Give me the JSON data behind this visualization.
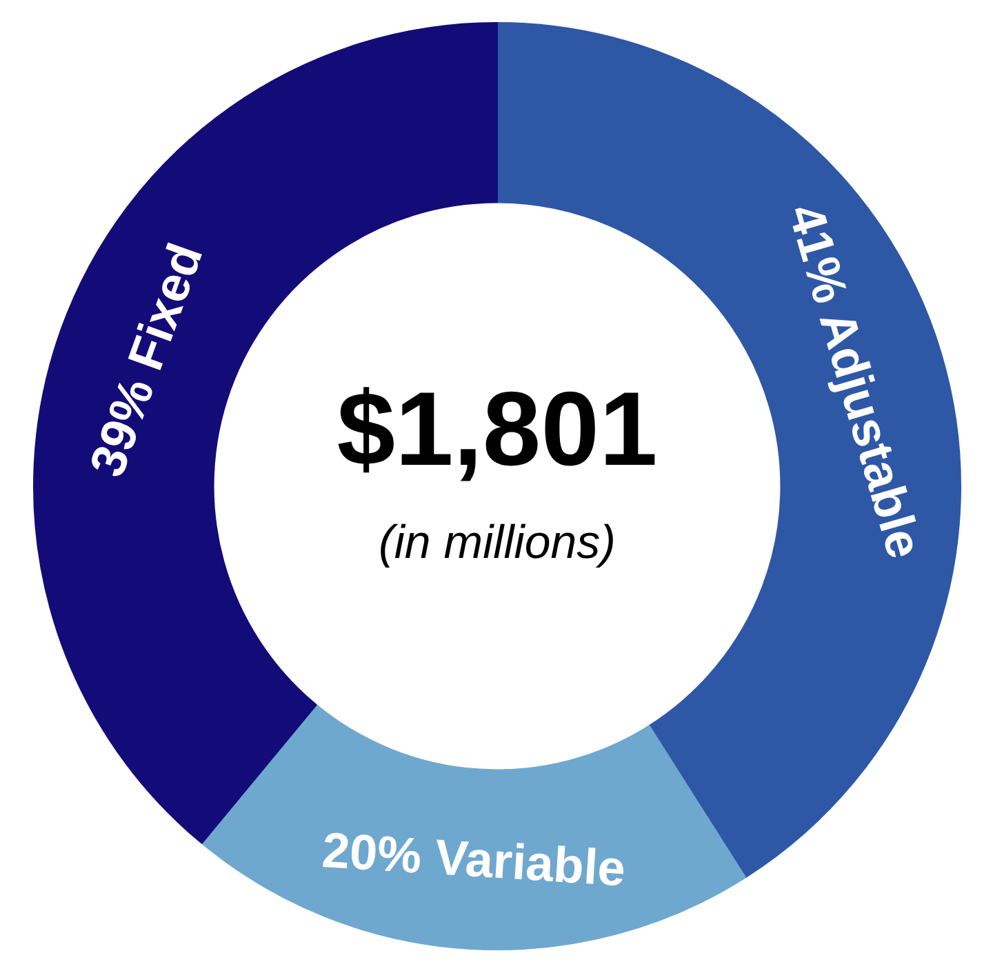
{
  "chart_data": {
    "type": "donut",
    "categories": [
      "Adjustable",
      "Variable",
      "Fixed"
    ],
    "values": [
      41,
      20,
      39
    ],
    "colors": [
      "#2e58a6",
      "#6fa8cf",
      "#130c78"
    ],
    "value_labels": [
      "41%",
      "20%",
      "39%"
    ],
    "annotations": [
      "$1,801",
      "(in millions)"
    ]
  }
}
